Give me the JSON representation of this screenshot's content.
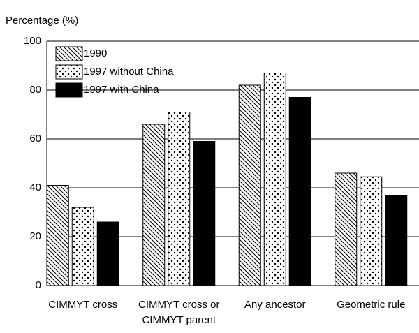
{
  "chart_data": {
    "type": "bar",
    "y_label": "Percentage (%)",
    "categories": [
      "CIMMYT cross",
      "CIMMYT cross or\nCIMMYT parent",
      "Any ancestor",
      "Geometric rule"
    ],
    "series": [
      {
        "name": "1990",
        "color": "#000000",
        "pattern": "hatch",
        "values": [
          41,
          66,
          82,
          46
        ]
      },
      {
        "name": "1997 without China",
        "color": "#000000",
        "pattern": "dots",
        "values": [
          32,
          71,
          87,
          44.5
        ]
      },
      {
        "name": "1997 with China",
        "color": "#000000",
        "pattern": "solid",
        "values": [
          26,
          59,
          77,
          37
        ]
      }
    ],
    "ylim": [
      0,
      100
    ],
    "yticks": [
      0,
      20,
      40,
      60,
      80,
      100
    ],
    "grid": true,
    "legend": "top-left"
  }
}
